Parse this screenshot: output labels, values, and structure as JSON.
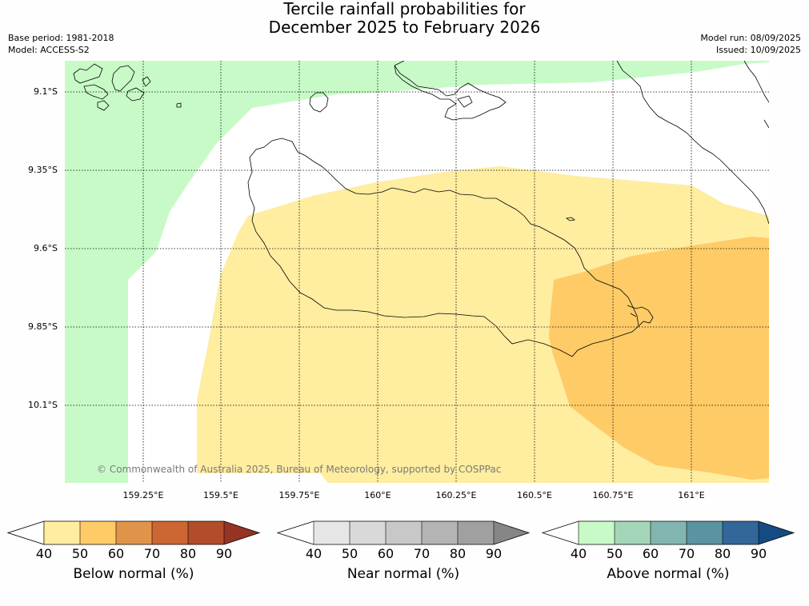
{
  "title": {
    "line1": "Tercile rainfall probabilities for",
    "line2": "December 2025 to February 2026"
  },
  "info_left": {
    "base_period": "Base period: 1981-2018",
    "model": "Model: ACCESS-S2"
  },
  "info_right": {
    "model_run": "Model run: 08/09/2025",
    "issued": "Issued: 10/09/2025"
  },
  "map": {
    "latitude_labels": [
      "9.1°S",
      "9.35°S",
      "9.6°S",
      "9.85°S",
      "10.1°S"
    ],
    "longitude_labels": [
      "159.25°E",
      "159.5°E",
      "159.75°E",
      "160°E",
      "160.25°E",
      "160.5°E",
      "160.75°E",
      "161°E"
    ],
    "copyright": "© Commonwealth of Australia 2025, Bureau of Meteorology, supported by COSPPac",
    "region_colors": {
      "above_normal_50": "#c8fac8",
      "below_normal_40": "#ffeda0",
      "below_normal_50": "#fecb67",
      "no_signal": "#ffffff",
      "coastline": "#000000"
    }
  },
  "colorbars": [
    {
      "title": "Below normal (%)",
      "ticks": [
        "40",
        "50",
        "60",
        "70",
        "80",
        "90"
      ],
      "colors": [
        "#ffffff",
        "#ffeda0",
        "#fecb67",
        "#e0944a",
        "#cc6633",
        "#b24d2a",
        "#963322"
      ]
    },
    {
      "title": "Near normal (%)",
      "ticks": [
        "40",
        "50",
        "60",
        "70",
        "80",
        "90"
      ],
      "colors": [
        "#ffffff",
        "#e6e6e6",
        "#d9d9d9",
        "#c8c8c8",
        "#b4b4b4",
        "#a0a0a0",
        "#868686"
      ]
    },
    {
      "title": "Above normal (%)",
      "ticks": [
        "40",
        "50",
        "60",
        "70",
        "80",
        "90"
      ],
      "colors": [
        "#ffffff",
        "#c8fac8",
        "#a3d6b8",
        "#82b5b0",
        "#5b94a0",
        "#336699",
        "#144b82"
      ]
    }
  ]
}
